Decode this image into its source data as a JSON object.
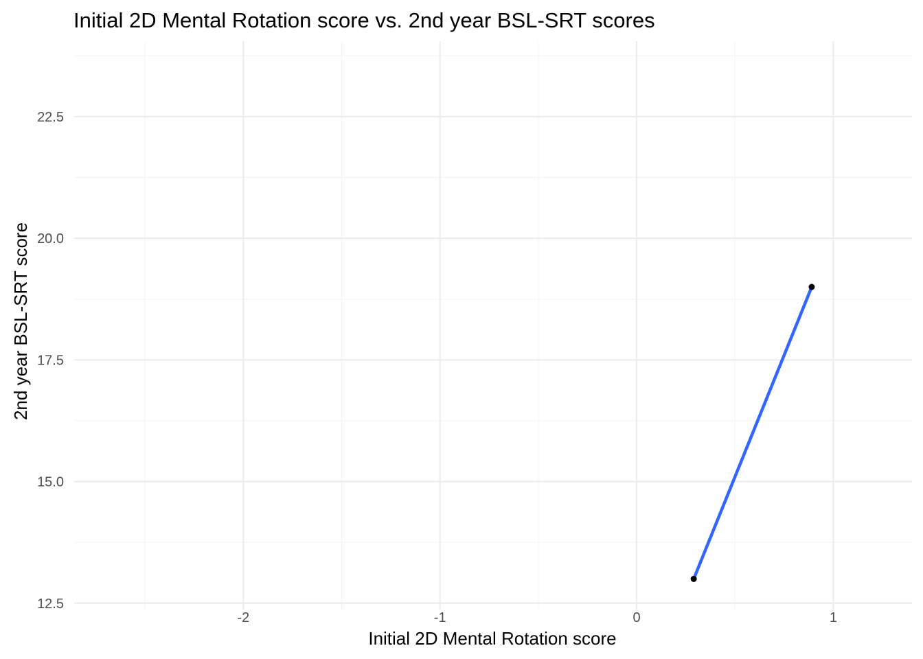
{
  "chart_data": {
    "type": "scatter",
    "title": "Initial 2D Mental Rotation score vs. 2nd year BSL-SRT scores",
    "xlabel": "Initial 2D Mental Rotation score",
    "ylabel": "2nd year BSL-SRT score",
    "xlim": [
      -2.93,
      1.4
    ],
    "ylim": [
      12.37,
      24.05
    ],
    "x_ticks": [
      -2,
      -1,
      0,
      1
    ],
    "x_tick_labels": [
      "-2",
      "-1",
      "0",
      "1"
    ],
    "x_minor_ticks": [
      -2.5,
      -1.5,
      -0.5,
      0.5
    ],
    "y_ticks": [
      12.5,
      15.0,
      17.5,
      20.0,
      22.5
    ],
    "y_tick_labels": [
      "12.5",
      "15.0",
      "17.5",
      "20.0",
      "22.5"
    ],
    "y_minor_ticks": [
      13.75,
      16.25,
      18.75,
      21.25,
      23.75
    ],
    "grid": true,
    "series": [
      {
        "type": "scatter",
        "x": [
          0.29,
          0.89
        ],
        "y": [
          13.0,
          19.0
        ],
        "color": "#000000"
      },
      {
        "type": "line",
        "x": [
          0.29,
          0.89
        ],
        "y": [
          13.0,
          19.0
        ],
        "color": "#3366ff"
      }
    ]
  }
}
